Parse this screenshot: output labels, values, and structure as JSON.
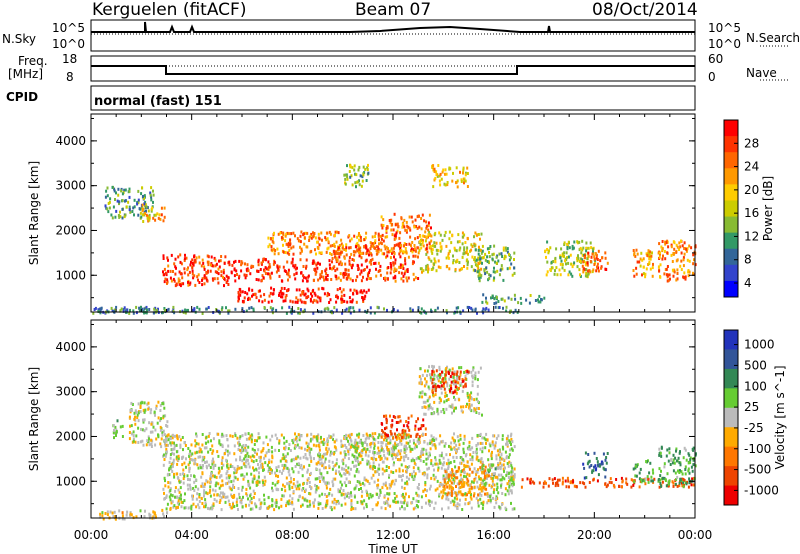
{
  "header": {
    "station": "Kerguelen (fitACF)",
    "beam": "Beam 07",
    "date": "08/Oct/2014"
  },
  "noise_panel": {
    "left_label": "N.Sky",
    "right_label": "N.Search",
    "left_ticks": [
      "10^5",
      "10^0"
    ],
    "right_ticks": [
      "10^5",
      "10^0"
    ]
  },
  "freq_panel": {
    "left_label_1": "Freq.",
    "left_label_2": "[MHz]",
    "right_label": "Nave",
    "left_ticks": [
      "18",
      "8"
    ],
    "right_ticks": [
      "60",
      "0"
    ]
  },
  "cpid": {
    "label": "CPID",
    "value": "normal (fast) 151"
  },
  "power_colorbar": {
    "label": "Power [dB]",
    "ticks": [
      "28",
      "24",
      "20",
      "16",
      "12",
      "8",
      "4"
    ],
    "colors": [
      "#ff0000",
      "#ff3300",
      "#ff6600",
      "#ff9900",
      "#ffcc00",
      "#cccc00",
      "#88bb33",
      "#339966",
      "#336699",
      "#3344cc",
      "#0000ff"
    ]
  },
  "velocity_colorbar": {
    "label": "Velocity [m s^-1]",
    "ticks": [
      "1000",
      "500",
      "100",
      "25",
      "-25",
      "-100",
      "-500",
      "-1000"
    ],
    "colors": [
      "#2233bb",
      "#335599",
      "#338855",
      "#66cc33",
      "#bbbbbb",
      "#ffaa00",
      "#ff7700",
      "#ee4400",
      "#ee0000"
    ]
  },
  "chart_data": [
    {
      "type": "heatmap",
      "name": "power",
      "ylabel": "Slant Range [km]",
      "xlabel": "Time UT",
      "xticks": [
        "00:00",
        "04:00",
        "08:00",
        "12:00",
        "16:00",
        "20:00",
        "00:00"
      ],
      "yticks": [
        "1000",
        "2000",
        "3000",
        "4000"
      ],
      "xlim": [
        0,
        24
      ],
      "ylim": [
        180,
        4600
      ],
      "colorbar": "Power [dB]",
      "clim": [
        0,
        30
      ],
      "blobs": [
        {
          "t0": 0.3,
          "t1": 3.0,
          "r0": 180,
          "r1": 320,
          "v": 8
        },
        {
          "t0": 0.5,
          "t1": 2.5,
          "r0": 2300,
          "r1": 3000,
          "v": 10
        },
        {
          "t0": 2.0,
          "t1": 3.0,
          "r0": 2200,
          "r1": 2600,
          "v": 20
        },
        {
          "t0": 2.8,
          "t1": 5.5,
          "r0": 800,
          "r1": 1500,
          "v": 26
        },
        {
          "t0": 5.5,
          "t1": 9.5,
          "r0": 900,
          "r1": 1400,
          "v": 27
        },
        {
          "t0": 5.8,
          "t1": 11.0,
          "r0": 420,
          "r1": 750,
          "v": 28
        },
        {
          "t0": 7.0,
          "t1": 11.5,
          "r0": 1500,
          "r1": 2000,
          "v": 22
        },
        {
          "t0": 9.5,
          "t1": 13.0,
          "r0": 900,
          "r1": 1700,
          "v": 25
        },
        {
          "t0": 11.5,
          "t1": 13.5,
          "r0": 1500,
          "r1": 2400,
          "v": 23
        },
        {
          "t0": 13.0,
          "t1": 15.5,
          "r0": 1100,
          "r1": 2000,
          "v": 16
        },
        {
          "t0": 15.2,
          "t1": 16.8,
          "r0": 900,
          "r1": 1700,
          "v": 12
        },
        {
          "t0": 13.5,
          "t1": 15.0,
          "r0": 3000,
          "r1": 3500,
          "v": 18
        },
        {
          "t0": 10.0,
          "t1": 11.0,
          "r0": 3000,
          "r1": 3500,
          "v": 12
        },
        {
          "t0": 15.5,
          "t1": 18.0,
          "r0": 400,
          "r1": 600,
          "v": 10
        },
        {
          "t0": 18.0,
          "t1": 20.0,
          "r0": 1000,
          "r1": 1800,
          "v": 14
        },
        {
          "t0": 19.5,
          "t1": 20.5,
          "r0": 1100,
          "r1": 1600,
          "v": 24
        },
        {
          "t0": 21.5,
          "t1": 22.3,
          "r0": 1000,
          "r1": 1600,
          "v": 20
        },
        {
          "t0": 22.5,
          "t1": 24.0,
          "r0": 900,
          "r1": 1800,
          "v": 22
        },
        {
          "t0": 0.0,
          "t1": 17.0,
          "r0": 180,
          "r1": 320,
          "v": 8
        }
      ]
    },
    {
      "type": "heatmap",
      "name": "velocity",
      "ylabel": "Slant Range [km]",
      "xlabel": "Time UT",
      "xticks": [
        "00:00",
        "04:00",
        "08:00",
        "12:00",
        "16:00",
        "20:00",
        "00:00"
      ],
      "yticks": [
        "1000",
        "2000",
        "3000",
        "4000"
      ],
      "xlim": [
        0,
        24
      ],
      "ylim": [
        180,
        4600
      ],
      "colorbar": "Velocity [m s^-1]",
      "clim": [
        -1000,
        1000
      ],
      "blobs": [
        {
          "t0": 0.3,
          "t1": 3.0,
          "r0": 180,
          "r1": 400,
          "v": -100
        },
        {
          "t0": 0.8,
          "t1": 1.3,
          "r0": 2000,
          "r1": 2400,
          "v": 200
        },
        {
          "t0": 1.5,
          "t1": 3.0,
          "r0": 1800,
          "r1": 2800,
          "v": 0
        },
        {
          "t0": 2.8,
          "t1": 16.8,
          "r0": 400,
          "r1": 2100,
          "v": 0
        },
        {
          "t0": 10.0,
          "t1": 12.5,
          "r0": 1500,
          "r1": 2100,
          "v": 0
        },
        {
          "t0": 11.5,
          "t1": 13.3,
          "r0": 2000,
          "r1": 2500,
          "v": -700
        },
        {
          "t0": 14.0,
          "t1": 16.0,
          "r0": 700,
          "r1": 1400,
          "v": -300
        },
        {
          "t0": 15.5,
          "t1": 16.8,
          "r0": 900,
          "r1": 1400,
          "v": 100
        },
        {
          "t0": 13.0,
          "t1": 15.5,
          "r0": 2500,
          "r1": 3600,
          "v": 0
        },
        {
          "t0": 13.5,
          "t1": 15.0,
          "r0": 3000,
          "r1": 3500,
          "v": -700
        },
        {
          "t0": 17.0,
          "t1": 24.0,
          "r0": 900,
          "r1": 1100,
          "v": -600
        },
        {
          "t0": 19.5,
          "t1": 20.5,
          "r0": 1100,
          "r1": 1700,
          "v": 600
        },
        {
          "t0": 21.5,
          "t1": 22.3,
          "r0": 1000,
          "r1": 1500,
          "v": 300
        },
        {
          "t0": 22.5,
          "t1": 24.0,
          "r0": 900,
          "r1": 1800,
          "v": 300
        }
      ]
    }
  ]
}
